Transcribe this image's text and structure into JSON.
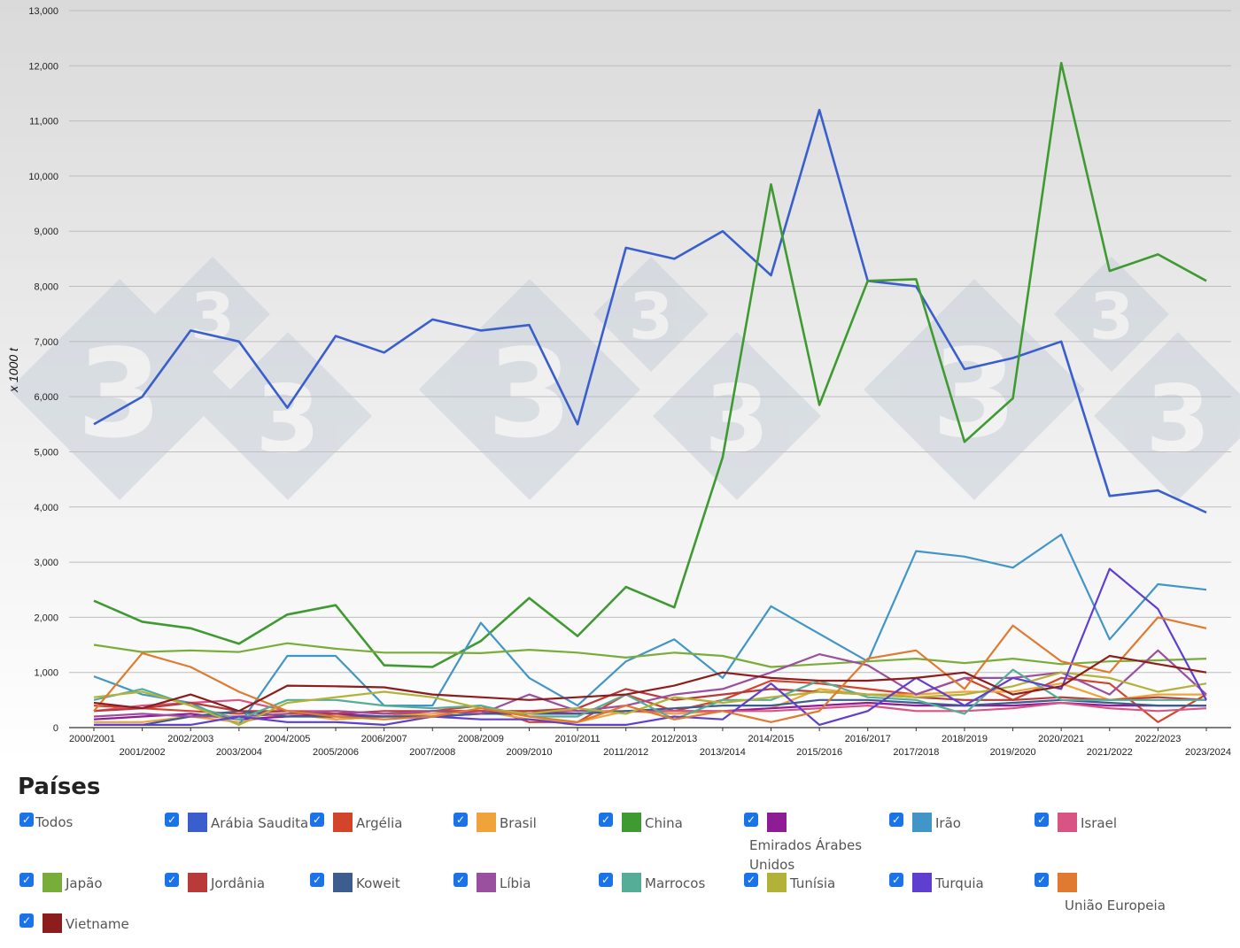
{
  "chart_data": {
    "type": "line",
    "title": "",
    "ylabel": "x 1000 t",
    "xlabel": "",
    "ylim": [
      0,
      13000
    ],
    "yticks": [
      0,
      1000,
      2000,
      3000,
      4000,
      5000,
      6000,
      7000,
      8000,
      9000,
      10000,
      11000,
      12000,
      13000
    ],
    "ytick_labels": [
      "0",
      "1,000",
      "2,000",
      "3,000",
      "4,000",
      "5,000",
      "6,000",
      "7,000",
      "8,000",
      "9,000",
      "10,000",
      "11,000",
      "12,000",
      "13,000"
    ],
    "grid": true,
    "categories": [
      "2000/2001",
      "2001/2002",
      "2002/2003",
      "2003/2004",
      "2004/2005",
      "2005/2006",
      "2006/2007",
      "2007/2008",
      "2008/2009",
      "2009/2010",
      "2010/2011",
      "2011/2012",
      "2012/2013",
      "2013/2014",
      "2014/2015",
      "2015/2016",
      "2016/2017",
      "2017/2018",
      "2018/2019",
      "2019/2020",
      "2020/2021",
      "2021/2022",
      "2022/2023",
      "2023/2024"
    ],
    "series": [
      {
        "name": "Arábia Saudita",
        "color": "#3a5fcd",
        "values": [
          5500,
          6000,
          7200,
          7000,
          5800,
          7100,
          6800,
          7400,
          7200,
          7300,
          5500,
          8700,
          8500,
          9000,
          8200,
          11200,
          8100,
          8000,
          6500,
          6700,
          7000,
          4200,
          4300,
          3900
        ]
      },
      {
        "name": "Argélia",
        "color": "#d2452b",
        "values": [
          400,
          350,
          300,
          250,
          300,
          150,
          200,
          300,
          400,
          100,
          100,
          600,
          300,
          500,
          850,
          800,
          700,
          600,
          900,
          500,
          900,
          800,
          100,
          600
        ]
      },
      {
        "name": "Brasil",
        "color": "#f0a33a",
        "values": [
          100,
          100,
          200,
          100,
          250,
          150,
          200,
          250,
          300,
          150,
          100,
          300,
          250,
          300,
          350,
          700,
          600,
          600,
          650,
          650,
          800,
          500,
          600,
          600
        ]
      },
      {
        "name": "China",
        "color": "#3f9a32",
        "values": [
          2300,
          1920,
          1800,
          1520,
          2050,
          2220,
          1130,
          1100,
          1570,
          2350,
          1660,
          2550,
          2180,
          4900,
          9850,
          5850,
          8100,
          8130,
          5180,
          5970,
          12050,
          8280,
          8580,
          8100
        ]
      },
      {
        "name": "Emirados Árabes Unidos",
        "color": "#8e1c95",
        "values": [
          150,
          200,
          250,
          150,
          200,
          250,
          200,
          200,
          250,
          300,
          250,
          300,
          300,
          300,
          350,
          400,
          450,
          400,
          400,
          400,
          450,
          400,
          400,
          400
        ]
      },
      {
        "name": "Irão",
        "color": "#4296c7",
        "values": [
          930,
          600,
          450,
          50,
          1300,
          1300,
          400,
          400,
          1900,
          900,
          400,
          1200,
          1600,
          900,
          2200,
          1700,
          1200,
          3200,
          3100,
          2900,
          3500,
          1600,
          2600,
          2500
        ]
      },
      {
        "name": "Israel",
        "color": "#d75483",
        "values": [
          300,
          400,
          450,
          500,
          300,
          300,
          250,
          300,
          300,
          300,
          300,
          300,
          300,
          300,
          300,
          350,
          400,
          300,
          300,
          350,
          450,
          350,
          300,
          350
        ]
      },
      {
        "name": "Japão",
        "color": "#79ad3a",
        "values": [
          1500,
          1370,
          1400,
          1370,
          1530,
          1430,
          1360,
          1360,
          1350,
          1410,
          1360,
          1270,
          1360,
          1300,
          1100,
          1150,
          1200,
          1250,
          1170,
          1250,
          1150,
          1200,
          1220,
          1250
        ]
      },
      {
        "name": "Jordânia",
        "color": "#b93a3a",
        "values": [
          300,
          350,
          450,
          300,
          300,
          250,
          300,
          300,
          300,
          300,
          350,
          700,
          500,
          600,
          700,
          650,
          600,
          550,
          500,
          500,
          550,
          500,
          550,
          500
        ]
      },
      {
        "name": "Koweit",
        "color": "#3d5d8f",
        "values": [
          50,
          50,
          200,
          300,
          200,
          200,
          200,
          200,
          250,
          250,
          250,
          300,
          350,
          400,
          400,
          500,
          500,
          450,
          400,
          450,
          500,
          450,
          400,
          400
        ]
      },
      {
        "name": "Líbia",
        "color": "#9b4f9f",
        "values": [
          200,
          250,
          200,
          200,
          250,
          300,
          250,
          300,
          250,
          600,
          300,
          400,
          600,
          700,
          1000,
          1330,
          1130,
          600,
          900,
          900,
          1000,
          600,
          1400,
          600
        ]
      },
      {
        "name": "Marrocos",
        "color": "#55ad98",
        "values": [
          500,
          700,
          400,
          150,
          500,
          500,
          400,
          350,
          400,
          200,
          200,
          600,
          150,
          500,
          500,
          850,
          550,
          500,
          250,
          1050,
          500,
          500,
          500,
          500
        ]
      },
      {
        "name": "Tunísia",
        "color": "#b3b238",
        "values": [
          550,
          650,
          400,
          50,
          450,
          550,
          650,
          550,
          350,
          250,
          350,
          250,
          550,
          450,
          550,
          650,
          600,
          550,
          600,
          750,
          1000,
          900,
          650,
          800
        ]
      },
      {
        "name": "Turquia",
        "color": "#5e3fcf",
        "values": [
          50,
          50,
          50,
          200,
          100,
          100,
          50,
          200,
          150,
          150,
          50,
          50,
          200,
          150,
          800,
          50,
          300,
          900,
          400,
          900,
          700,
          2880,
          2150,
          500
        ]
      },
      {
        "name": "União Europeia",
        "color": "#e07a30",
        "values": [
          300,
          1350,
          1100,
          650,
          300,
          200,
          150,
          200,
          350,
          200,
          100,
          400,
          150,
          300,
          100,
          300,
          1250,
          1400,
          700,
          1850,
          1200,
          1000,
          2000,
          1800
        ]
      },
      {
        "name": "Vietname",
        "color": "#8c1d1d",
        "values": [
          450,
          350,
          600,
          300,
          760,
          750,
          730,
          600,
          550,
          500,
          550,
          600,
          760,
          1000,
          900,
          850,
          850,
          900,
          1000,
          600,
          750,
          1300,
          1150,
          1000
        ]
      }
    ]
  },
  "legend": {
    "title": "Países",
    "todos_label": "Todos",
    "check_glyph": "✓",
    "items": [
      {
        "label": "Arábia Saudita",
        "color": "#3a5fcd"
      },
      {
        "label": "Argélia",
        "color": "#d2452b"
      },
      {
        "label": "Brasil",
        "color": "#f0a33a"
      },
      {
        "label": "China",
        "color": "#3f9a32"
      },
      {
        "label": "Emirados Árabes Unidos",
        "color": "#8e1c95"
      },
      {
        "label": "Irão",
        "color": "#4296c7"
      },
      {
        "label": "Israel",
        "color": "#d75483"
      },
      {
        "label": "Japão",
        "color": "#79ad3a"
      },
      {
        "label": "Jordânia",
        "color": "#b93a3a"
      },
      {
        "label": "Koweit",
        "color": "#3d5d8f"
      },
      {
        "label": "Líbia",
        "color": "#9b4f9f"
      },
      {
        "label": "Marrocos",
        "color": "#55ad98"
      },
      {
        "label": "Tunísia",
        "color": "#b3b238"
      },
      {
        "label": "Turquia",
        "color": "#5e3fcf"
      },
      {
        "label": "União Europeia",
        "color": "#e07a30"
      },
      {
        "label": "Vietname",
        "color": "#8c1d1d"
      }
    ]
  },
  "watermark": {
    "glyph": "3",
    "color": "#c9d1db"
  }
}
